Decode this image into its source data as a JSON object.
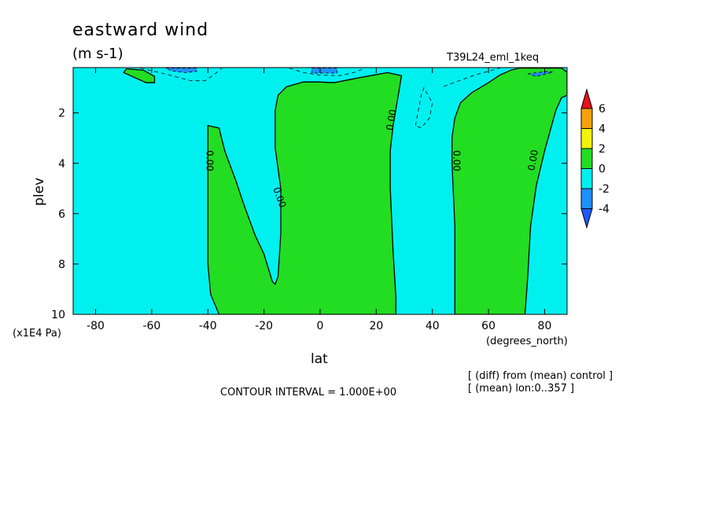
{
  "chart_data": {
    "type": "contour",
    "title": "eastward wind",
    "units": "(m s-1)",
    "run_label": "T39L24_eml_1keq",
    "xlabel": "lat",
    "xunit": "(degrees_north)",
    "ylabel": "plev",
    "yunit": "(x1E4 Pa)",
    "xlim": [
      -88,
      88
    ],
    "ylim": [
      10,
      0.2
    ],
    "x_ticks": [
      -80,
      -60,
      -40,
      -20,
      0,
      20,
      40,
      60,
      80
    ],
    "x_tick_labels": [
      "-80",
      "-60",
      "-40",
      "-20",
      "0",
      "20",
      "40",
      "60",
      "80"
    ],
    "y_ticks": [
      2,
      4,
      6,
      8,
      10
    ],
    "y_tick_labels": [
      "2",
      "4",
      "6",
      "8",
      "10"
    ],
    "contour_interval_text": "CONTOUR INTERVAL = 1.000E+00",
    "contour_label": "0.00",
    "notes": [
      "[ (diff) from (mean) control ]",
      "[ (mean) lon:0..357 ]"
    ],
    "colorbar": {
      "levels": [
        "6",
        "4",
        "2",
        "0",
        "-2",
        "-4"
      ],
      "colors": [
        "#e8101a",
        "#f5a10a",
        "#f2f20a",
        "#22dd22",
        "#00f0f0",
        "#1e90ff",
        "#1e5aff"
      ]
    },
    "positive_regions": [
      {
        "points": [
          [
            -69,
            0.25
          ],
          [
            -63,
            0.3
          ],
          [
            -59,
            0.55
          ],
          [
            -59,
            0.8
          ],
          [
            -62,
            0.8
          ],
          [
            -66,
            0.6
          ],
          [
            -70,
            0.4
          ]
        ]
      },
      {
        "points": [
          [
            -40,
            2.5
          ],
          [
            -36,
            2.6
          ],
          [
            -34,
            3.5
          ],
          [
            -30,
            4.7
          ],
          [
            -27,
            5.7
          ],
          [
            -23,
            6.9
          ],
          [
            -20,
            7.6
          ],
          [
            -17,
            8.7
          ],
          [
            -16,
            8.8
          ],
          [
            -15,
            8.5
          ],
          [
            -14,
            6.8
          ],
          [
            -14,
            5.0
          ],
          [
            -16,
            3.4
          ],
          [
            -16,
            1.9
          ],
          [
            -15,
            1.3
          ],
          [
            -12,
            0.96
          ],
          [
            -6,
            0.77
          ],
          [
            0,
            0.77
          ],
          [
            5,
            0.8
          ],
          [
            14,
            0.6
          ],
          [
            24,
            0.4
          ],
          [
            29,
            0.52
          ],
          [
            28,
            1.2
          ],
          [
            26,
            2.5
          ],
          [
            25,
            3.5
          ],
          [
            25,
            5.0
          ],
          [
            26,
            7.5
          ],
          [
            27,
            9.3
          ],
          [
            27,
            10
          ],
          [
            -36,
            10
          ],
          [
            -39,
            9.2
          ],
          [
            -40,
            8.0
          ],
          [
            -40,
            5.0
          ],
          [
            -40,
            4.0
          ]
        ]
      },
      {
        "points": [
          [
            48,
            10
          ],
          [
            48,
            6.5
          ],
          [
            47,
            4.0
          ],
          [
            47,
            3.0
          ],
          [
            48,
            2.2
          ],
          [
            50,
            1.6
          ],
          [
            54,
            1.2
          ],
          [
            60,
            0.8
          ],
          [
            64,
            0.5
          ],
          [
            68,
            0.3
          ],
          [
            71,
            0.22
          ],
          [
            86,
            0.22
          ],
          [
            88,
            0.38
          ],
          [
            88,
            1.3
          ],
          [
            86,
            1.4
          ],
          [
            84,
            1.9
          ],
          [
            80,
            3.5
          ],
          [
            77,
            4.9
          ],
          [
            75,
            6.5
          ],
          [
            74,
            8.5
          ],
          [
            73,
            10
          ]
        ]
      }
    ],
    "negative_regions": [
      {
        "points": [
          [
            -55,
            0.22
          ],
          [
            -44,
            0.22
          ],
          [
            -44,
            0.35
          ],
          [
            -48,
            0.4
          ],
          [
            -53,
            0.33
          ]
        ]
      },
      {
        "points": [
          [
            -3,
            0.22
          ],
          [
            6,
            0.22
          ],
          [
            6,
            0.42
          ],
          [
            -3,
            0.42
          ]
        ]
      },
      {
        "points": [
          [
            74,
            0.45
          ],
          [
            81,
            0.35
          ],
          [
            83,
            0.38
          ],
          [
            77,
            0.55
          ]
        ]
      }
    ],
    "dashed_contours": [
      [
        [
          -64,
          0.22
        ],
        [
          -55,
          0.46
        ],
        [
          -46,
          0.72
        ],
        [
          -41,
          0.72
        ],
        [
          -38,
          0.5
        ],
        [
          -35,
          0.22
        ]
      ],
      [
        [
          -11,
          0.22
        ],
        [
          -6,
          0.4
        ],
        [
          0,
          0.5
        ],
        [
          7,
          0.52
        ],
        [
          12,
          0.4
        ],
        [
          16,
          0.22
        ]
      ],
      [
        [
          44,
          0.95
        ],
        [
          55,
          0.5
        ],
        [
          64,
          0.22
        ]
      ],
      [
        [
          34,
          2.5
        ],
        [
          36,
          1.3
        ],
        [
          37,
          1.0
        ],
        [
          40,
          1.6
        ],
        [
          39,
          2.2
        ],
        [
          36,
          2.6
        ],
        [
          34,
          2.5
        ]
      ]
    ]
  }
}
